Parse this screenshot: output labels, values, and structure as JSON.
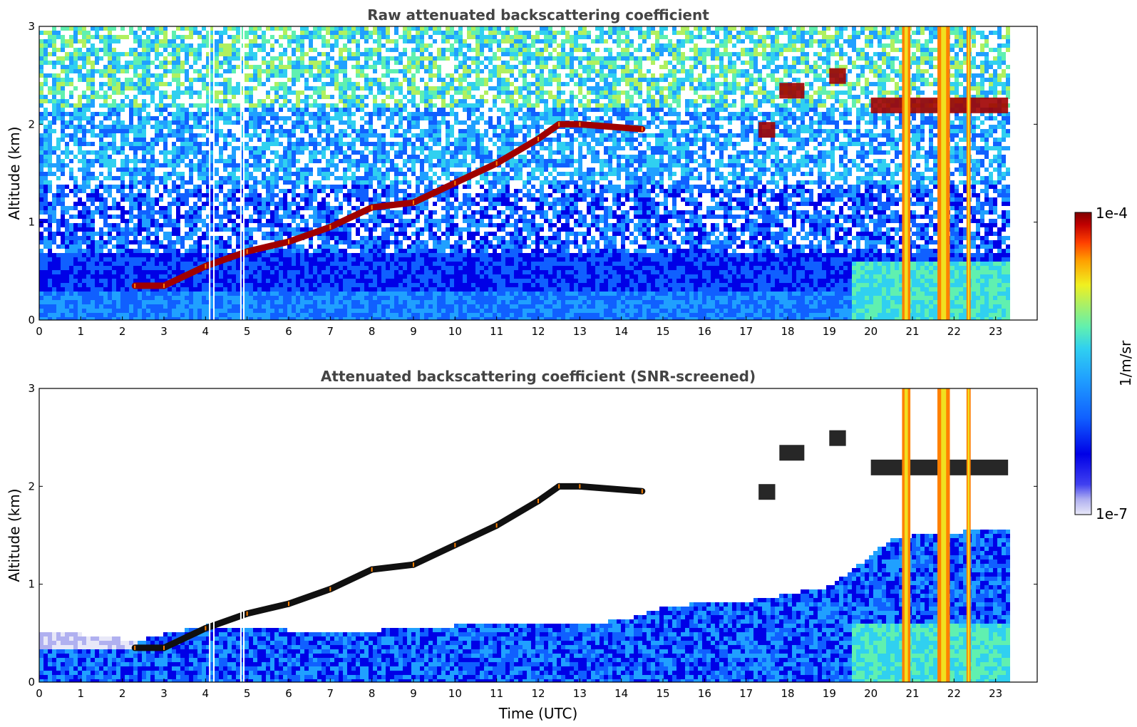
{
  "chart_data": [
    {
      "type": "heatmap",
      "title": "Raw attenuated backscattering coefficient",
      "xlabel": "",
      "ylabel": "Altitude (km)",
      "xlim": [
        0,
        24
      ],
      "ylim": [
        0,
        3
      ],
      "x_ticks": [
        "0",
        "1",
        "2",
        "3",
        "4",
        "5",
        "6",
        "7",
        "8",
        "9",
        "10",
        "11",
        "12",
        "13",
        "14",
        "15",
        "16",
        "17",
        "18",
        "19",
        "20",
        "21",
        "22",
        "23"
      ],
      "y_ticks": [
        "0",
        "1",
        "2",
        "3"
      ],
      "data_end_hour": 23.3,
      "boundary_layer_top": [
        {
          "x": 2.3,
          "y": 0.35
        },
        {
          "x": 3.0,
          "y": 0.35
        },
        {
          "x": 4.0,
          "y": 0.55
        },
        {
          "x": 5.0,
          "y": 0.7
        },
        {
          "x": 6.0,
          "y": 0.8
        },
        {
          "x": 7.0,
          "y": 0.95
        },
        {
          "x": 8.0,
          "y": 1.15
        },
        {
          "x": 9.0,
          "y": 1.2
        },
        {
          "x": 10.0,
          "y": 1.4
        },
        {
          "x": 11.0,
          "y": 1.6
        },
        {
          "x": 12.0,
          "y": 1.85
        },
        {
          "x": 12.5,
          "y": 2.0
        },
        {
          "x": 13.0,
          "y": 2.0
        },
        {
          "x": 14.5,
          "y": 1.95
        }
      ],
      "cloud_features": [
        {
          "x_start": 17.3,
          "x_end": 17.7,
          "y": 1.95
        },
        {
          "x_start": 17.8,
          "x_end": 18.4,
          "y": 2.35
        },
        {
          "x_start": 19.0,
          "x_end": 19.4,
          "y": 2.5
        },
        {
          "x_start": 20.0,
          "x_end": 23.3,
          "y": 2.2
        }
      ],
      "precipitation_columns": [
        {
          "x_start": 20.75,
          "x_end": 20.95
        },
        {
          "x_start": 21.6,
          "x_end": 21.9
        },
        {
          "x_start": 22.3,
          "x_end": 22.4
        }
      ],
      "gaps": [
        4.1,
        4.2,
        4.85,
        4.92
      ]
    },
    {
      "type": "heatmap",
      "title": "Attenuated backscattering coefficient (SNR-screened)",
      "xlabel": "Time (UTC)",
      "ylabel": "Altitude (km)",
      "xlim": [
        0,
        24
      ],
      "ylim": [
        0,
        3
      ],
      "x_ticks": [
        "0",
        "1",
        "2",
        "3",
        "4",
        "5",
        "6",
        "7",
        "8",
        "9",
        "10",
        "11",
        "12",
        "13",
        "14",
        "15",
        "16",
        "17",
        "18",
        "19",
        "20",
        "21",
        "22",
        "23"
      ],
      "y_ticks": [
        "0",
        "1",
        "2",
        "3"
      ],
      "data_end_hour": 23.3,
      "boundary_layer_top": [
        {
          "x": 0,
          "y": 0.55
        },
        {
          "x": 2.3,
          "y": 0.45
        },
        {
          "x": 4.0,
          "y": 0.6
        },
        {
          "x": 6.0,
          "y": 0.55
        },
        {
          "x": 8.0,
          "y": 0.55
        },
        {
          "x": 10.0,
          "y": 0.6
        },
        {
          "x": 12.0,
          "y": 0.6
        },
        {
          "x": 14.0,
          "y": 0.65
        },
        {
          "x": 15.0,
          "y": 0.8
        },
        {
          "x": 17.0,
          "y": 0.85
        },
        {
          "x": 19.0,
          "y": 1.0
        },
        {
          "x": 20.5,
          "y": 1.5
        },
        {
          "x": 23.3,
          "y": 1.6
        }
      ]
    }
  ],
  "colorbar": {
    "label": "1/m/sr",
    "max_label": "1e-4",
    "min_label": "1e-7",
    "colors": [
      "#e8e8f8",
      "#b0b0f0",
      "#4040f0",
      "#0000e6",
      "#1060ff",
      "#20a0ff",
      "#30d0f0",
      "#60f0b0",
      "#b0f060",
      "#f0f020",
      "#ffa000",
      "#ff4000",
      "#c00000",
      "#800000"
    ]
  }
}
